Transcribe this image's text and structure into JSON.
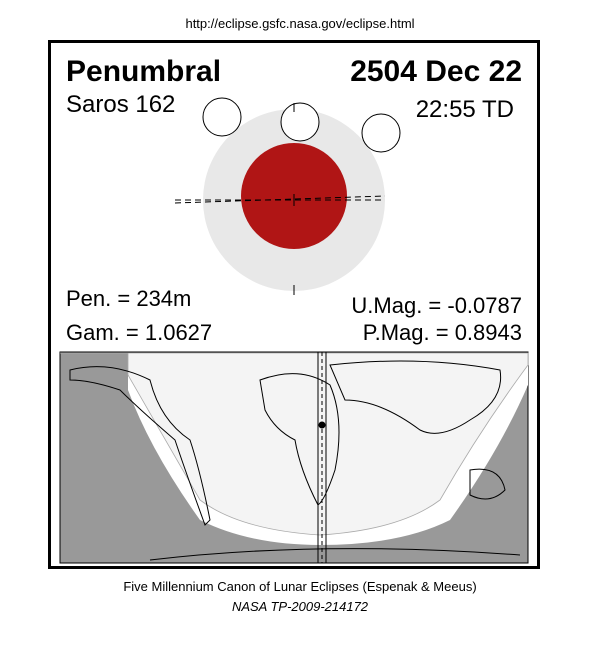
{
  "url": "http://eclipse.gsfc.nasa.gov/eclipse.html",
  "eclipse": {
    "type": "Penumbral",
    "date": "2504 Dec 22",
    "saros": "Saros 162",
    "time": "22:55 TD",
    "pen": "Pen. = 234m",
    "gam": "Gam. = 1.0627",
    "umag": "U.Mag. = -0.0787",
    "pmag": "P.Mag. = 0.8943"
  },
  "footer": {
    "canon": "Five Millennium Canon of Lunar Eclipses (Espenak & Meeus)",
    "ref": "NASA TP-2009-214172"
  }
}
